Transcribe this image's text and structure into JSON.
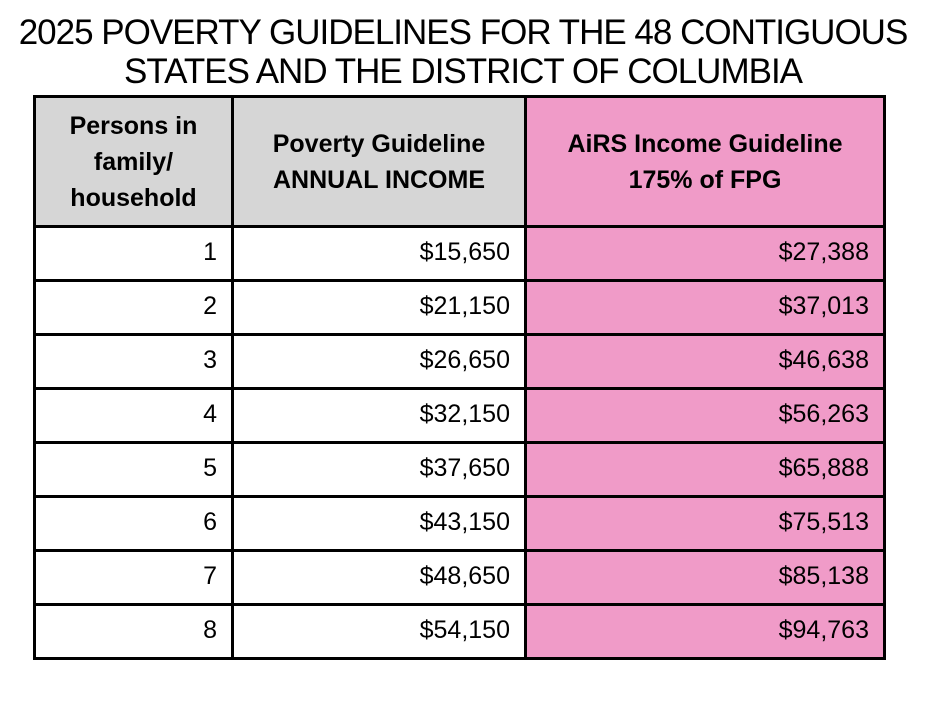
{
  "title": {
    "line1": "2025 POVERTY GUIDELINES FOR THE 48 CONTIGUOUS",
    "line2": "STATES AND THE DISTRICT OF COLUMBIA"
  },
  "table": {
    "headers": {
      "persons": "Persons in\nfamily/\nhousehold",
      "poverty": "Poverty Guideline\nANNUAL INCOME",
      "airs": "AiRS Income Guideline\n175% of FPG"
    },
    "rows": [
      {
        "persons": "1",
        "poverty": "$15,650",
        "airs": "$27,388"
      },
      {
        "persons": "2",
        "poverty": "$21,150",
        "airs": "$37,013"
      },
      {
        "persons": "3",
        "poverty": "$26,650",
        "airs": "$46,638"
      },
      {
        "persons": "4",
        "poverty": "$32,150",
        "airs": "$56,263"
      },
      {
        "persons": "5",
        "poverty": "$37,650",
        "airs": "$65,888"
      },
      {
        "persons": "6",
        "poverty": "$43,150",
        "airs": "$75,513"
      },
      {
        "persons": "7",
        "poverty": "$48,650",
        "airs": "$85,138"
      },
      {
        "persons": "8",
        "poverty": "$54,150",
        "airs": "$94,763"
      }
    ]
  },
  "colors": {
    "header_gray": "#d6d6d6",
    "highlight_pink": "#f09bc8",
    "border": "#000000",
    "text": "#000000"
  },
  "chart_data": {
    "type": "table",
    "title": "2025 POVERTY GUIDELINES FOR THE 48 CONTIGUOUS STATES AND THE DISTRICT OF COLUMBIA",
    "columns": [
      "Persons in family/household",
      "Poverty Guideline ANNUAL INCOME",
      "AiRS Income Guideline 175% of FPG"
    ],
    "rows": [
      [
        1,
        15650,
        27388
      ],
      [
        2,
        21150,
        37013
      ],
      [
        3,
        26650,
        46638
      ],
      [
        4,
        32150,
        56263
      ],
      [
        5,
        37650,
        65888
      ],
      [
        6,
        43150,
        75513
      ],
      [
        7,
        48650,
        85138
      ],
      [
        8,
        54150,
        94763
      ]
    ],
    "notes": "Third column is highlighted pink; values equal 175% of the Federal Poverty Guideline."
  }
}
